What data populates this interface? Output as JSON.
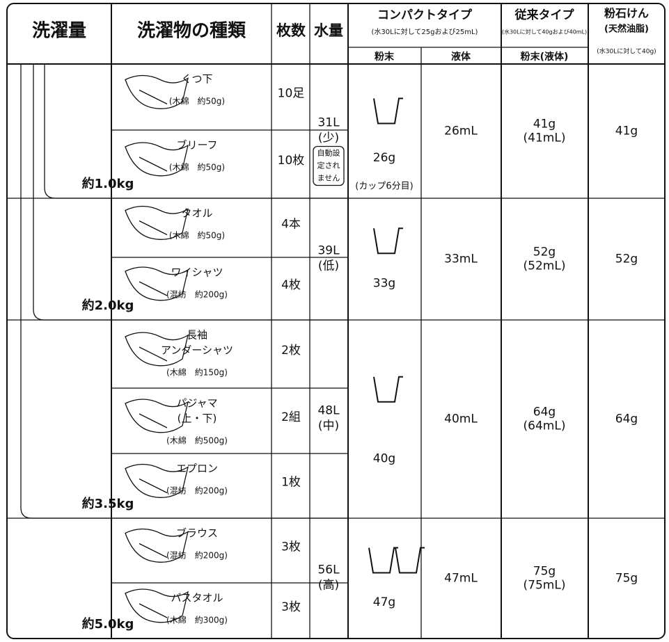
{
  "header": {
    "wash_amount": "洗濯量",
    "item_type": "洗濯物の種類",
    "count": "枚数",
    "water": "水量",
    "compact": {
      "title": "コンパクトタイプ",
      "note": "(水30Lに対して25gおよび25mL)",
      "powder": "粉末",
      "liquid": "液体"
    },
    "conventional": {
      "title": "従来タイプ",
      "note": "(水30Lに対して40gおよび40mL)",
      "sub": "粉末(液体)"
    },
    "soap": {
      "title": "粉石けん",
      "sub": "(天然油脂)",
      "note": "(水30Lに対して40g)"
    }
  },
  "weights": [
    "約1.0kg",
    "約2.0kg",
    "約3.5kg",
    "約5.0kg"
  ],
  "items": [
    {
      "name": [
        "くつ下"
      ],
      "material": "(木綿　約50g)",
      "count": "10足"
    },
    {
      "name": [
        "ブリーフ"
      ],
      "material": "(木綿　約50g)",
      "count": "10枚"
    },
    {
      "name": [
        "タオル"
      ],
      "material": "(木綿　約50g)",
      "count": "4本"
    },
    {
      "name": [
        "ワイシャツ"
      ],
      "material": "(混紡　約200g)",
      "count": "4枚"
    },
    {
      "name": [
        "長袖",
        "アンダーシャツ"
      ],
      "material": "(木綿　約150g)",
      "count": "2枚"
    },
    {
      "name": [
        "パジャマ",
        "(上・下)"
      ],
      "material": "(木綿　約500g)",
      "count": "2組"
    },
    {
      "name": [
        "エプロン"
      ],
      "material": "(混紡　約200g)",
      "count": "1枚"
    },
    {
      "name": [
        "ブラウス"
      ],
      "material": "(混紡　約200g)",
      "count": "3枚"
    },
    {
      "name": [
        "バスタオル"
      ],
      "material": "(木綿　約300g)",
      "count": "3枚"
    }
  ],
  "groups": [
    {
      "water": "31L",
      "level": "(少)",
      "note": [
        "自動設",
        "定され",
        "ません"
      ],
      "powder": "26g",
      "cup": "(カップ6分目)",
      "liquid": "26mL",
      "conventional": "41g",
      "conventional_liquid": "(41mL)",
      "soap": "41g"
    },
    {
      "water": "39L",
      "level": "(低)",
      "powder": "33g",
      "liquid": "33mL",
      "conventional": "52g",
      "conventional_liquid": "(52mL)",
      "soap": "52g"
    },
    {
      "water": "48L",
      "level": "(中)",
      "powder": "40g",
      "liquid": "40mL",
      "conventional": "64g",
      "conventional_liquid": "(64mL)",
      "soap": "64g"
    },
    {
      "water": "56L",
      "level": "(高)",
      "powder": "47g",
      "liquid": "47mL",
      "conventional": "75g",
      "conventional_liquid": "(75mL)",
      "soap": "75g"
    }
  ]
}
